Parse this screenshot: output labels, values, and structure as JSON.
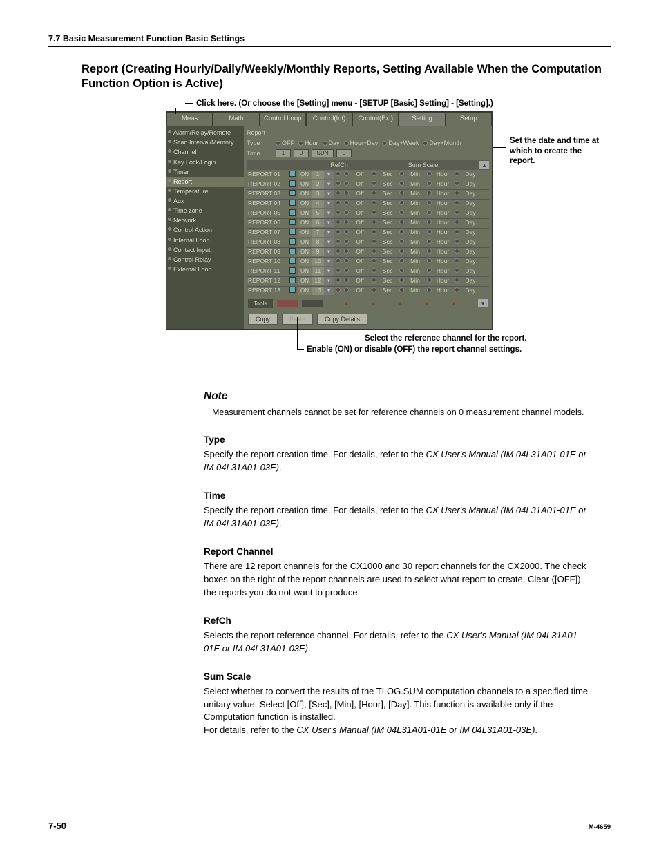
{
  "header": "7.7  Basic Measurement Function Basic Settings",
  "title": "Report (Creating Hourly/Daily/Weekly/Monthly Reports, Setting Available When the Computation Function Option is Active)",
  "click_line": "Click here. (Or choose the [Setting] menu - [SETUP [Basic] Setting] - [Setting].)",
  "callouts": {
    "right": "Set the date and time at which to create the report.",
    "bottom1": "Select the reference channel for the report.",
    "bottom2": "Enable (ON) or disable (OFF) the report channel settings."
  },
  "shot": {
    "tabs": [
      "Meas",
      "Math",
      "Control Loop",
      "Control(Int)",
      "Control(Ext)",
      "Setting",
      "Setup"
    ],
    "active_tab": 5,
    "sidebar": [
      "Alarm/Relay/Remote",
      "Scan Interval/Memory",
      "Channel",
      "Key Lock/Login",
      "Timer",
      "Report",
      "Temperature",
      "Aux",
      "Time zone",
      "Network",
      "Control Action",
      "Internal Loop",
      "Contact Input",
      "Control Relay",
      "External Loop"
    ],
    "sidebar_selected": 5,
    "field_report": "Report",
    "field_type": "Type",
    "type_opts": [
      "OFF",
      "Hour",
      "Day",
      "Hour+Day",
      "Day+Week",
      "Day+Month"
    ],
    "field_time": "Time",
    "time_vals": [
      "1",
      "0",
      "SUN",
      "0"
    ],
    "col_refch": "RefCh",
    "col_sum": "Sum Scale",
    "scales": [
      "Off",
      "Sec",
      "Min",
      "Hour",
      "Day"
    ],
    "rows": [
      {
        "n": "REPORT 01",
        "v": "1"
      },
      {
        "n": "REPORT 02",
        "v": "2"
      },
      {
        "n": "REPORT 03",
        "v": "3"
      },
      {
        "n": "REPORT 04",
        "v": "4"
      },
      {
        "n": "REPORT 05",
        "v": "5"
      },
      {
        "n": "REPORT 06",
        "v": "6"
      },
      {
        "n": "REPORT 07",
        "v": "7"
      },
      {
        "n": "REPORT 08",
        "v": "8"
      },
      {
        "n": "REPORT 09",
        "v": "9"
      },
      {
        "n": "REPORT 10",
        "v": "10"
      },
      {
        "n": "REPORT 11",
        "v": "11"
      },
      {
        "n": "REPORT 12",
        "v": "12"
      },
      {
        "n": "REPORT 13",
        "v": "13"
      }
    ],
    "on_label": "ON",
    "tools": "Tools",
    "btn_copy": "Copy",
    "btn_paste": "Paste",
    "btn_details": "Copy Details"
  },
  "note": {
    "title": "Note",
    "body": "Measurement channels cannot be set for reference channels on 0 measurement channel models."
  },
  "sections": [
    {
      "h": "Type",
      "p": "Specify the report creation time. For details, refer to the ",
      "i": "CX User's Manual (IM 04L31A01-01E or IM 04L31A01-03E)",
      "t": "."
    },
    {
      "h": "Time",
      "p": "Specify the report creation time.  For details, refer to the ",
      "i": "CX User's Manual (IM 04L31A01-01E or IM 04L31A01-03E)",
      "t": "."
    },
    {
      "h": "Report Channel",
      "p": "There are 12 report channels for the CX1000 and 30 report channels for the CX2000.  The check boxes on the right of the report channels are used to select what report to create.  Clear ([OFF]) the reports you do not want to produce.",
      "i": "",
      "t": ""
    },
    {
      "h": "RefCh",
      "p": "Selects the report reference channel.  For details, refer to the ",
      "i": "CX User's Manual (IM 04L31A01-01E or IM 04L31A01-03E)",
      "t": "."
    },
    {
      "h": "Sum Scale",
      "p": "Select whether to convert the results of the TLOG.SUM computation channels to a specified time unitary value.  Select [Off], [Sec], [Min], [Hour], [Day].  This function is available only if the Computation function is installed.",
      "i": "",
      "t": "",
      "extra": "For details, refer to the ",
      "extra_i": "CX User's Manual (IM 04L31A01-01E or IM 04L31A01-03E)",
      "extra_t": "."
    }
  ],
  "footer": {
    "page": "7-50",
    "doc": "M-4659"
  }
}
